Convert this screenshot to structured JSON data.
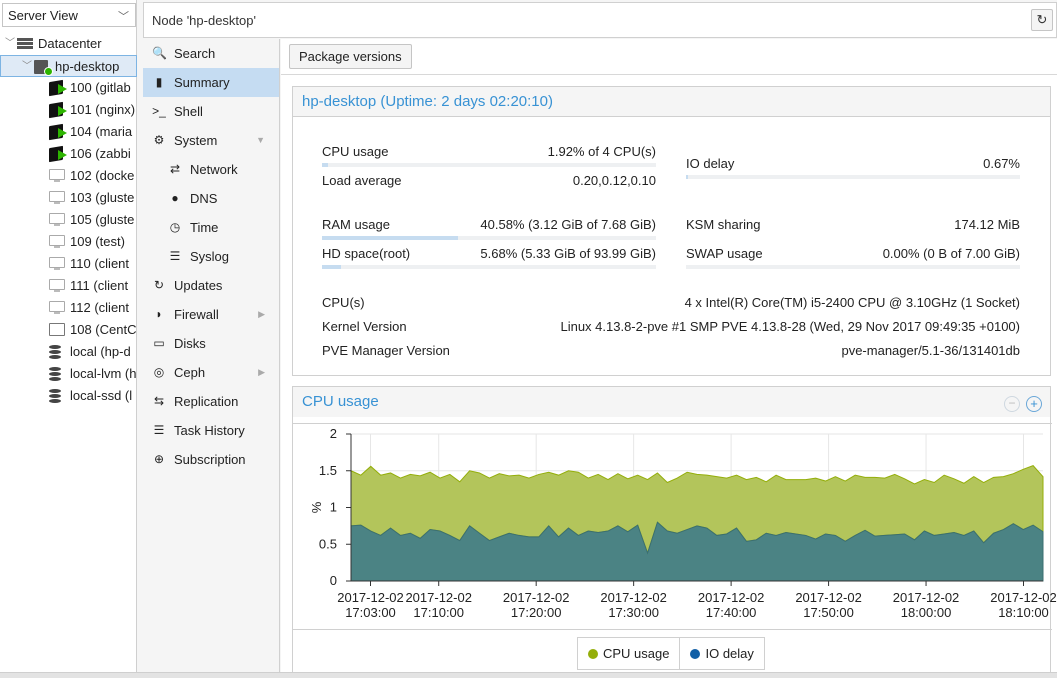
{
  "tree_panel": {
    "view_select": "Server View",
    "items": [
      {
        "label": "Datacenter",
        "type": "datacenter",
        "level": 0
      },
      {
        "label": "hp-desktop",
        "type": "node",
        "level": 1,
        "selected": true
      },
      {
        "label": "100 (gitlab",
        "type": "ct-running",
        "level": 2
      },
      {
        "label": "101 (nginx)",
        "type": "ct-running",
        "level": 2
      },
      {
        "label": "104 (maria",
        "type": "ct-running",
        "level": 2
      },
      {
        "label": "106 (zabbi",
        "type": "ct-running",
        "level": 2
      },
      {
        "label": "102 (docke",
        "type": "vm",
        "level": 2
      },
      {
        "label": "103 (gluste",
        "type": "vm",
        "level": 2
      },
      {
        "label": "105 (gluste",
        "type": "vm",
        "level": 2
      },
      {
        "label": "109 (test)",
        "type": "vm",
        "level": 2
      },
      {
        "label": "110 (client",
        "type": "vm",
        "level": 2
      },
      {
        "label": "111 (client",
        "type": "vm",
        "level": 2
      },
      {
        "label": "112 (client",
        "type": "vm",
        "level": 2
      },
      {
        "label": "108 (CentC",
        "type": "template",
        "level": 2
      },
      {
        "label": "local (hp-d",
        "type": "storage",
        "level": 2
      },
      {
        "label": "local-lvm (h",
        "type": "storage",
        "level": 2
      },
      {
        "label": "local-ssd (l",
        "type": "storage",
        "level": 2
      }
    ]
  },
  "header": {
    "title": "Node 'hp-desktop'"
  },
  "nav": {
    "items": [
      {
        "label": "Search",
        "icon": "search-icon",
        "glyph": "🔍",
        "sub": false
      },
      {
        "label": "Summary",
        "icon": "book-icon",
        "glyph": "▮",
        "sub": false,
        "selected": true
      },
      {
        "label": "Shell",
        "icon": "terminal-icon",
        "glyph": ">_",
        "sub": false
      },
      {
        "label": "System",
        "icon": "cogs-icon",
        "glyph": "⚙",
        "sub": false,
        "arrow": "▼"
      },
      {
        "label": "Network",
        "icon": "exchange-icon",
        "glyph": "⇄",
        "sub": true
      },
      {
        "label": "DNS",
        "icon": "globe-icon",
        "glyph": "●",
        "sub": true
      },
      {
        "label": "Time",
        "icon": "clock-icon",
        "glyph": "◷",
        "sub": true
      },
      {
        "label": "Syslog",
        "icon": "list-icon",
        "glyph": "☰",
        "sub": true
      },
      {
        "label": "Updates",
        "icon": "refresh-icon",
        "glyph": "↻",
        "sub": false
      },
      {
        "label": "Firewall",
        "icon": "shield-icon",
        "glyph": "◗",
        "sub": false,
        "arrow": "▶"
      },
      {
        "label": "Disks",
        "icon": "hdd-icon",
        "glyph": "▭",
        "sub": false
      },
      {
        "label": "Ceph",
        "icon": "ceph-icon",
        "glyph": "◎",
        "sub": false,
        "arrow": "▶"
      },
      {
        "label": "Replication",
        "icon": "retweet-icon",
        "glyph": "⇆",
        "sub": false
      },
      {
        "label": "Task History",
        "icon": "task-list-icon",
        "glyph": "☰",
        "sub": false
      },
      {
        "label": "Subscription",
        "icon": "support-icon",
        "glyph": "⊕",
        "sub": false
      }
    ]
  },
  "toolbar": {
    "package_versions": "Package versions"
  },
  "status": {
    "title": "hp-desktop (Uptime: 2 days 02:20:10)",
    "cpu_usage_label": "CPU usage",
    "cpu_usage_value": "1.92% of 4 CPU(s)",
    "cpu_usage_fraction": 0.0192,
    "io_delay_label": "IO delay",
    "io_delay_value": "0.67%",
    "io_delay_fraction": 0.0067,
    "load_average_label": "Load average",
    "load_average_value": "0.20,0.12,0.10",
    "ram_usage_label": "RAM usage",
    "ram_usage_value": "40.58% (3.12 GiB of 7.68 GiB)",
    "ram_usage_fraction": 0.4058,
    "ksm_sharing_label": "KSM sharing",
    "ksm_sharing_value": "174.12 MiB",
    "hd_space_label": "HD space(root)",
    "hd_space_value": "5.68% (5.33 GiB of 93.99 GiB)",
    "hd_space_fraction": 0.0568,
    "swap_usage_label": "SWAP usage",
    "swap_usage_value": "0.00% (0 B of 7.00 GiB)",
    "swap_usage_fraction": 0.0,
    "cpus_label": "CPU(s)",
    "cpus_value": "4 x Intel(R) Core(TM) i5-2400 CPU @ 3.10GHz (1 Socket)",
    "kernel_label": "Kernel Version",
    "kernel_value": "Linux 4.13.8-2-pve #1 SMP PVE 4.13.8-28 (Wed, 29 Nov 2017 09:49:35 +0100)",
    "pve_label": "PVE Manager Version",
    "pve_value": "pve-manager/5.1-36/131401db"
  },
  "cpu_panel": {
    "title": "CPU usage",
    "zoom_reset_glyph": "−",
    "zoom_in_glyph": "+"
  },
  "chart_data": {
    "type": "area",
    "title": "CPU usage",
    "xlabel": "",
    "ylabel": "%",
    "ylim": [
      0,
      2
    ],
    "yticks": [
      "0",
      "0.5",
      "1",
      "1.5",
      "2"
    ],
    "xlim": [
      0,
      71
    ],
    "x_tick_positions": [
      2,
      9,
      19,
      29,
      39,
      49,
      59,
      69
    ],
    "x_tick_labels": [
      [
        "2017-12-02",
        "17:03:00"
      ],
      [
        "2017-12-02",
        "17:10:00"
      ],
      [
        "2017-12-02",
        "17:20:00"
      ],
      [
        "2017-12-02",
        "17:30:00"
      ],
      [
        "2017-12-02",
        "17:40:00"
      ],
      [
        "2017-12-02",
        "17:50:00"
      ],
      [
        "2017-12-02",
        "18:00:00"
      ],
      [
        "2017-12-02",
        "18:10:00"
      ]
    ],
    "grid": true,
    "legend_position": "bottom-center",
    "series": [
      {
        "name": "CPU usage",
        "color": "#94ae0a",
        "values": [
          0.75,
          0.68,
          0.88,
          0.82,
          0.75,
          0.78,
          0.8,
          0.85,
          0.78,
          0.72,
          0.83,
          0.8,
          0.75,
          0.82,
          0.85,
          0.86,
          0.78,
          0.82,
          0.8,
          0.85,
          0.73,
          0.84,
          0.78,
          0.86,
          0.72,
          0.79,
          0.7,
          0.71,
          0.72,
          0.68,
          1.0,
          0.67,
          0.66,
          0.75,
          0.78,
          0.7,
          0.72,
          0.8,
          0.76,
          0.72,
          0.84,
          0.85,
          0.7,
          0.82,
          0.72,
          0.74,
          0.76,
          0.83,
          0.72,
          0.8,
          0.82,
          0.82,
          0.72,
          0.8,
          0.78,
          0.82,
          0.75,
          0.76,
          0.7,
          0.72,
          0.8,
          0.73,
          0.71,
          0.74,
          0.82,
          0.76,
          0.72,
          0.68,
          0.82,
          0.81,
          0.75
        ]
      },
      {
        "name": "IO delay",
        "color": "#115fa6",
        "values": [
          0.75,
          0.76,
          0.68,
          0.62,
          0.72,
          0.62,
          0.65,
          0.58,
          0.7,
          0.68,
          0.62,
          0.55,
          0.75,
          0.65,
          0.55,
          0.6,
          0.65,
          0.62,
          0.6,
          0.6,
          0.75,
          0.6,
          0.72,
          0.62,
          0.68,
          0.66,
          0.68,
          0.75,
          0.67,
          0.76,
          0.38,
          0.8,
          0.68,
          0.65,
          0.7,
          0.75,
          0.72,
          0.62,
          0.64,
          0.72,
          0.54,
          0.56,
          0.65,
          0.62,
          0.66,
          0.64,
          0.62,
          0.57,
          0.64,
          0.62,
          0.54,
          0.62,
          0.69,
          0.61,
          0.62,
          0.63,
          0.64,
          0.56,
          0.68,
          0.62,
          0.64,
          0.66,
          0.62,
          0.68,
          0.52,
          0.65,
          0.7,
          0.78,
          0.7,
          0.76,
          0.67
        ]
      }
    ]
  }
}
